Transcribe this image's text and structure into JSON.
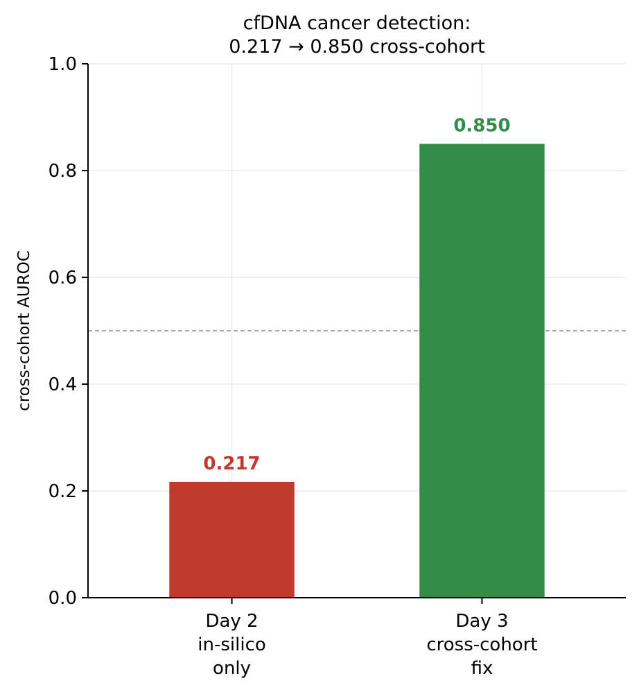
{
  "chart_data": {
    "type": "bar",
    "title": "cfDNA cancer detection:",
    "subtitle": "0.217 → 0.850 cross-cohort",
    "xlabel": "",
    "ylabel": "cross-cohort AUROC",
    "ylim": [
      0,
      1.0
    ],
    "yticks": [
      "0.0",
      "0.2",
      "0.4",
      "0.6",
      "0.8",
      "1.0"
    ],
    "categories": [
      [
        "Day 2",
        "in-silico",
        "only"
      ],
      [
        "Day 3",
        "cross-cohort",
        "fix"
      ]
    ],
    "values": [
      0.217,
      0.85
    ],
    "value_labels": [
      "0.217",
      "0.850"
    ],
    "colors": [
      "#c0392b",
      "#338c48"
    ],
    "reference_line": {
      "y": 0.5,
      "style": "dashed",
      "color": "#888888"
    },
    "grid": true,
    "legend": "none"
  }
}
